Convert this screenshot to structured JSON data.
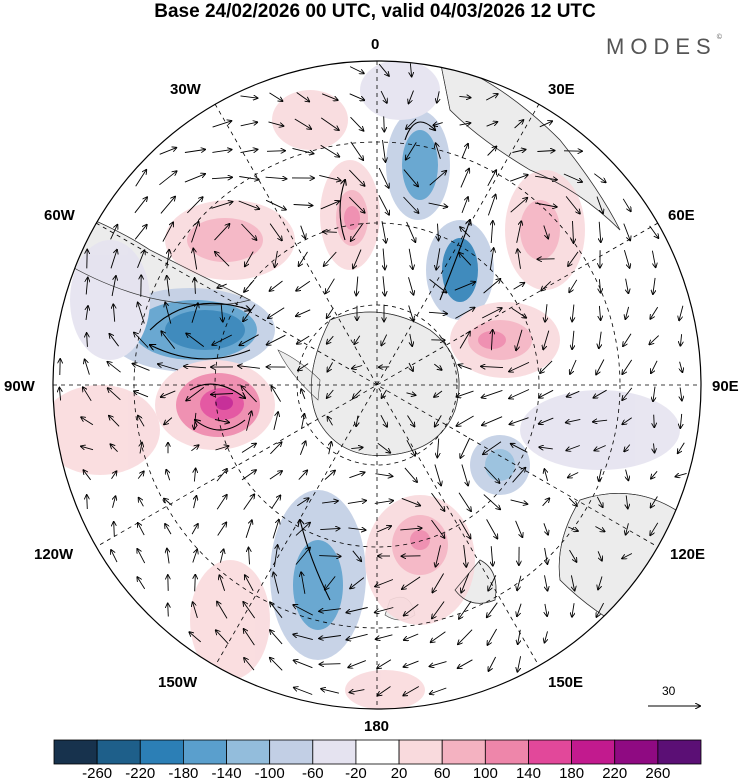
{
  "title": "Base 24/02/2026 00 UTC, valid 04/03/2026 12 UTC",
  "brand": "MODES",
  "brand_mark": "©",
  "meridian_labels": {
    "deg0": "0",
    "deg30e": "30E",
    "deg60e": "60E",
    "deg90e": "90E",
    "deg120e": "120E",
    "deg150e": "150E",
    "deg180": "180",
    "deg150w": "150W",
    "deg120w": "120W",
    "deg90w": "90W",
    "deg60w": "60W",
    "deg30w": "30W"
  },
  "reference_vector_label": "30",
  "colorbar": {
    "colors": [
      "#17324d",
      "#1e5f8a",
      "#2c7fb6",
      "#5a9fcd",
      "#93bddc",
      "#c2cfe5",
      "#e5e3f0",
      "#ffffff",
      "#f9dadd",
      "#f4b2c1",
      "#ee86aa",
      "#e2489a",
      "#c21a8e",
      "#8f0a82",
      "#5b0f75"
    ],
    "labels": [
      "-260",
      "-220",
      "-180",
      "-140",
      "-100",
      "-60",
      "-20",
      "20",
      "60",
      "100",
      "140",
      "180",
      "220",
      "260"
    ]
  },
  "anomaly_colors": {
    "neg_strong": "#2c7fb6",
    "neg_mid": "#93bddc",
    "neg_weak": "#c2cfe5",
    "pos_weak": "#f9dadd",
    "pos_mid": "#f4b2c1",
    "pos_strong": "#ee86aa",
    "pos_vstrong": "#e2489a",
    "pos_core": "#c21a8e",
    "land": "#ececec"
  }
}
